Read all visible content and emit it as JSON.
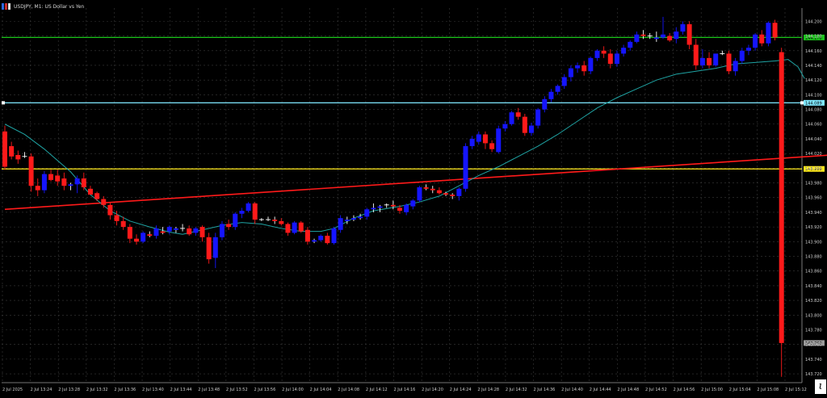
{
  "window": {
    "title": "USDJPY, M1:  US Dollar vs Yen"
  },
  "colors": {
    "background": "#000000",
    "grid": "#3a3a3a",
    "axis_text": "#cfcfcf",
    "bull_candle": "#1515ff",
    "bear_candle": "#ff1a1a",
    "moving_average": "#1fa3a3",
    "trendline": "#ff1a1a",
    "line_green": "#1bc41b",
    "line_cyan": "#7fe8ff",
    "line_yellow": "#ffe81a"
  },
  "corner_glyph": "ι",
  "chart_data": {
    "type": "candlestick",
    "title": "USDJPY, M1:  US Dollar vs Yen",
    "y_ticks": [
      "144.200",
      "144.180",
      "144.160",
      "144.140",
      "144.120",
      "144.100",
      "144.080",
      "144.060",
      "144.040",
      "144.020",
      "144.000",
      "143.980",
      "143.960",
      "143.940",
      "143.920",
      "143.900",
      "143.880",
      "143.860",
      "143.840",
      "143.820",
      "143.800",
      "143.780",
      "143.760",
      "143.740",
      "143.720"
    ],
    "ylim": [
      143.708,
      144.218
    ],
    "x_ticks": [
      "2 Jul 2025",
      "2 Jul 13:24",
      "2 Jul 13:28",
      "2 Jul 13:32",
      "2 Jul 13:36",
      "2 Jul 13:40",
      "2 Jul 13:44",
      "2 Jul 13:48",
      "2 Jul 13:52",
      "2 Jul 13:56",
      "2 Jul 14:00",
      "2 Jul 14:04",
      "2 Jul 14:08",
      "2 Jul 14:12",
      "2 Jul 14:16",
      "2 Jul 14:20",
      "2 Jul 14:24",
      "2 Jul 14:28",
      "2 Jul 14:32",
      "2 Jul 14:36",
      "2 Jul 14:40",
      "2 Jul 14:44",
      "2 Jul 14:48",
      "2 Jul 14:52",
      "2 Jul 14:56",
      "2 Jul 15:00",
      "2 Jul 15:04",
      "2 Jul 15:08",
      "2 Jul 15:12"
    ],
    "candles": {
      "columns": [
        "open",
        "high",
        "low",
        "close"
      ],
      "values": [
        [
          144.05,
          144.058,
          143.998,
          144.002
        ],
        [
          144.03,
          144.036,
          144.012,
          144.016
        ],
        [
          144.018,
          144.024,
          144.006,
          144.012
        ],
        [
          144.016,
          144.022,
          144.014,
          144.016
        ],
        [
          144.016,
          144.02,
          143.968,
          143.976
        ],
        [
          143.976,
          143.986,
          143.962,
          143.97
        ],
        [
          143.97,
          143.996,
          143.966,
          143.992
        ],
        [
          143.992,
          143.998,
          143.982,
          143.984
        ],
        [
          143.99,
          143.998,
          143.976,
          143.982
        ],
        [
          143.986,
          143.994,
          143.97,
          143.976
        ],
        [
          143.976,
          143.98,
          143.97,
          143.978
        ],
        [
          143.978,
          143.99,
          143.966,
          143.986
        ],
        [
          143.986,
          143.994,
          143.97,
          143.974
        ],
        [
          143.972,
          143.976,
          143.964,
          143.964
        ],
        [
          143.966,
          143.968,
          143.955,
          143.958
        ],
        [
          143.958,
          143.962,
          143.946,
          143.95
        ],
        [
          143.95,
          143.954,
          143.93,
          143.936
        ],
        [
          143.936,
          143.942,
          143.922,
          143.928
        ],
        [
          143.928,
          143.934,
          143.916,
          143.92
        ],
        [
          143.92,
          143.924,
          143.898,
          143.904
        ],
        [
          143.904,
          143.91,
          143.896,
          143.9
        ],
        [
          143.9,
          143.914,
          143.898,
          143.912
        ],
        [
          143.91,
          143.914,
          143.906,
          143.908
        ],
        [
          143.908,
          143.922,
          143.904,
          143.918
        ],
        [
          143.914,
          143.92,
          143.91,
          143.912
        ],
        [
          143.914,
          143.922,
          143.91,
          143.92
        ],
        [
          143.916,
          143.92,
          143.912,
          143.918
        ],
        [
          143.918,
          143.924,
          143.914,
          143.918
        ],
        [
          143.918,
          143.922,
          143.908,
          143.91
        ],
        [
          143.912,
          143.92,
          143.908,
          143.918
        ],
        [
          143.92,
          143.922,
          143.9,
          143.906
        ],
        [
          143.906,
          143.912,
          143.87,
          143.876
        ],
        [
          143.878,
          143.912,
          143.864,
          143.906
        ],
        [
          143.906,
          143.928,
          143.902,
          143.924
        ],
        [
          143.924,
          143.93,
          143.916,
          143.92
        ],
        [
          143.92,
          143.94,
          143.916,
          143.938
        ],
        [
          143.938,
          143.946,
          143.932,
          143.942
        ],
        [
          143.942,
          143.954,
          143.94,
          143.952
        ],
        [
          143.952,
          143.954,
          143.924,
          143.93
        ],
        [
          143.93,
          143.932,
          143.928,
          143.93
        ],
        [
          143.93,
          143.934,
          143.928,
          143.93
        ],
        [
          143.93,
          143.934,
          143.924,
          143.928
        ],
        [
          143.928,
          143.932,
          143.922,
          143.924
        ],
        [
          143.924,
          143.926,
          143.908,
          143.912
        ],
        [
          143.912,
          143.928,
          143.91,
          143.926
        ],
        [
          143.926,
          143.928,
          143.912,
          143.914
        ],
        [
          143.916,
          143.92,
          143.896,
          143.9
        ],
        [
          143.9,
          143.904,
          143.898,
          143.902
        ],
        [
          143.902,
          143.91,
          143.9,
          143.908
        ],
        [
          143.908,
          143.912,
          143.896,
          143.898
        ],
        [
          143.898,
          143.92,
          143.896,
          143.918
        ],
        [
          143.916,
          143.936,
          143.912,
          143.932
        ],
        [
          143.928,
          143.934,
          143.924,
          143.93
        ],
        [
          143.93,
          143.936,
          143.928,
          143.932
        ],
        [
          143.932,
          143.938,
          143.93,
          143.934
        ],
        [
          143.934,
          143.946,
          143.93,
          143.944
        ],
        [
          143.944,
          143.952,
          143.94,
          143.946
        ],
        [
          143.946,
          143.95,
          143.94,
          143.948
        ],
        [
          143.95,
          143.952,
          143.946,
          143.95
        ],
        [
          143.95,
          143.956,
          143.944,
          143.948
        ],
        [
          143.946,
          143.95,
          143.938,
          143.942
        ],
        [
          143.94,
          143.952,
          143.936,
          143.95
        ],
        [
          143.948,
          143.958,
          143.944,
          143.956
        ],
        [
          143.956,
          143.976,
          143.954,
          143.974
        ],
        [
          143.974,
          143.978,
          143.97,
          143.972
        ],
        [
          143.972,
          143.976,
          143.966,
          143.97
        ],
        [
          143.97,
          143.974,
          143.964,
          143.966
        ],
        [
          143.966,
          143.968,
          143.962,
          143.964
        ],
        [
          143.964,
          143.966,
          143.958,
          143.962
        ],
        [
          143.962,
          143.974,
          143.956,
          143.972
        ],
        [
          143.972,
          144.034,
          143.968,
          144.03
        ],
        [
          144.03,
          144.044,
          144.026,
          144.04
        ],
        [
          144.036,
          144.05,
          144.032,
          144.046
        ],
        [
          144.046,
          144.05,
          144.026,
          144.034
        ],
        [
          144.034,
          144.038,
          144.022,
          144.026
        ],
        [
          144.022,
          144.058,
          144.02,
          144.054
        ],
        [
          144.054,
          144.064,
          144.05,
          144.06
        ],
        [
          144.06,
          144.078,
          144.058,
          144.076
        ],
        [
          144.076,
          144.082,
          144.066,
          144.07
        ],
        [
          144.07,
          144.074,
          144.044,
          144.048
        ],
        [
          144.048,
          144.062,
          144.044,
          144.058
        ],
        [
          144.058,
          144.082,
          144.054,
          144.08
        ],
        [
          144.08,
          144.098,
          144.076,
          144.094
        ],
        [
          144.094,
          144.108,
          144.09,
          144.104
        ],
        [
          144.104,
          144.114,
          144.1,
          144.112
        ],
        [
          144.112,
          144.128,
          144.108,
          144.124
        ],
        [
          144.124,
          144.14,
          144.118,
          144.136
        ],
        [
          144.136,
          144.144,
          144.13,
          144.14
        ],
        [
          144.14,
          144.146,
          144.126,
          144.132
        ],
        [
          144.132,
          144.152,
          144.128,
          144.15
        ],
        [
          144.15,
          144.162,
          144.146,
          144.16
        ],
        [
          144.16,
          144.166,
          144.15,
          144.156
        ],
        [
          144.156,
          144.162,
          144.136,
          144.142
        ],
        [
          144.142,
          144.16,
          144.138,
          144.156
        ],
        [
          144.156,
          144.168,
          144.152,
          144.164
        ],
        [
          144.164,
          144.174,
          144.16,
          144.172
        ],
        [
          144.172,
          144.186,
          144.17,
          144.182
        ],
        [
          144.182,
          144.188,
          144.176,
          144.18
        ],
        [
          144.18,
          144.184,
          144.176,
          144.18
        ],
        [
          144.176,
          144.186,
          144.172,
          144.178
        ],
        [
          144.178,
          144.206,
          144.176,
          144.182
        ],
        [
          144.18,
          144.184,
          144.172,
          144.174
        ],
        [
          144.176,
          144.192,
          144.17,
          144.186
        ],
        [
          144.186,
          144.2,
          144.182,
          144.196
        ],
        [
          144.196,
          144.2,
          144.162,
          144.168
        ],
        [
          144.168,
          144.176,
          144.134,
          144.14
        ],
        [
          144.14,
          144.162,
          144.136,
          144.15
        ],
        [
          144.15,
          144.158,
          144.136,
          144.14
        ],
        [
          144.14,
          144.156,
          144.138,
          144.156
        ],
        [
          144.156,
          144.16,
          144.154,
          144.156
        ],
        [
          144.156,
          144.16,
          144.128,
          144.132
        ],
        [
          144.132,
          144.15,
          144.126,
          144.146
        ],
        [
          144.146,
          144.164,
          144.142,
          144.16
        ],
        [
          144.16,
          144.168,
          144.154,
          144.164
        ],
        [
          144.164,
          144.184,
          144.16,
          144.182
        ],
        [
          144.182,
          144.188,
          144.166,
          144.17
        ],
        [
          144.17,
          144.2,
          144.166,
          144.198
        ],
        [
          144.198,
          144.202,
          144.174,
          144.178
        ],
        [
          144.158,
          144.164,
          143.716,
          143.762
        ]
      ]
    },
    "moving_average": {
      "name": "",
      "points": [
        [
          0,
          144.06
        ],
        [
          6,
          144.046
        ],
        [
          12,
          144.026
        ],
        [
          20,
          143.995
        ],
        [
          26,
          143.964
        ],
        [
          32,
          143.942
        ],
        [
          38,
          143.928
        ],
        [
          44,
          143.92
        ],
        [
          50,
          143.913
        ],
        [
          54,
          143.91
        ],
        [
          60,
          143.916
        ],
        [
          66,
          143.922
        ],
        [
          72,
          143.926
        ],
        [
          78,
          143.924
        ],
        [
          84,
          143.918
        ],
        [
          90,
          143.914
        ],
        [
          96,
          143.914
        ],
        [
          100,
          143.918
        ],
        [
          106,
          143.932
        ],
        [
          112,
          143.942
        ],
        [
          120,
          143.948
        ],
        [
          126,
          143.954
        ],
        [
          132,
          143.962
        ],
        [
          138,
          143.976
        ],
        [
          144,
          143.99
        ],
        [
          150,
          144.002
        ],
        [
          156,
          144.016
        ],
        [
          162,
          144.03
        ],
        [
          168,
          144.046
        ],
        [
          174,
          144.064
        ],
        [
          180,
          144.082
        ],
        [
          186,
          144.096
        ],
        [
          192,
          144.108
        ],
        [
          198,
          144.12
        ],
        [
          204,
          144.128
        ],
        [
          210,
          144.132
        ],
        [
          216,
          144.136
        ],
        [
          222,
          144.142
        ],
        [
          228,
          144.144
        ],
        [
          234,
          144.146
        ],
        [
          238,
          144.148
        ],
        [
          241,
          144.138
        ],
        [
          243,
          144.122
        ]
      ]
    },
    "trendline": {
      "from": [
        0,
        143.944
      ],
      "to": [
        236,
        144.083
      ]
    },
    "horizontal_lines": [
      {
        "price": 144.178,
        "label": "144.178",
        "color": "green"
      },
      {
        "price": 144.089,
        "label": "144.089",
        "color": "cyan"
      },
      {
        "price": 143.999,
        "label": "143.999",
        "color": "yellow"
      }
    ],
    "current_price_label": "143.762",
    "grid": true
  }
}
